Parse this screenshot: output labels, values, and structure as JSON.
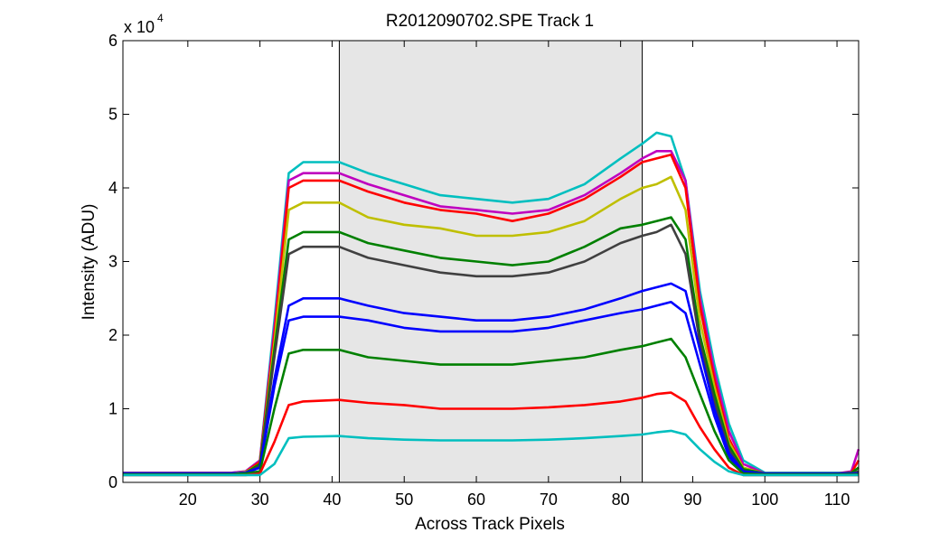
{
  "chart_data": {
    "type": "line",
    "title": "R2012090702.SPE   Track 1",
    "xlabel": "Across Track Pixels",
    "ylabel": "Intensity (ADU)",
    "y_multiplier_label": "x 10",
    "y_multiplier_exp": "4",
    "xlim": [
      11,
      113
    ],
    "ylim": [
      0,
      6
    ],
    "x_ticks": [
      20,
      30,
      40,
      50,
      60,
      70,
      80,
      90,
      100,
      110
    ],
    "y_ticks": [
      0,
      1,
      2,
      3,
      4,
      5,
      6
    ],
    "grid": false,
    "highlight_region": [
      41,
      83
    ],
    "x": [
      11,
      20,
      26,
      28,
      30,
      32,
      34,
      36,
      41,
      45,
      50,
      55,
      60,
      65,
      70,
      75,
      80,
      83,
      85,
      87,
      89,
      91,
      93,
      95,
      97,
      100,
      105,
      110,
      112,
      113
    ],
    "series": [
      {
        "color": "#00bfbf",
        "values": [
          0.13,
          0.13,
          0.13,
          0.15,
          0.3,
          2.2,
          4.2,
          4.35,
          4.35,
          4.2,
          4.05,
          3.9,
          3.85,
          3.8,
          3.85,
          4.05,
          4.4,
          4.6,
          4.75,
          4.7,
          4.1,
          2.6,
          1.6,
          0.8,
          0.3,
          0.13,
          0.13,
          0.13,
          0.13,
          0.15
        ]
      },
      {
        "color": "#bf00bf",
        "values": [
          0.13,
          0.13,
          0.13,
          0.15,
          0.3,
          2.1,
          4.1,
          4.2,
          4.2,
          4.05,
          3.9,
          3.75,
          3.7,
          3.65,
          3.7,
          3.9,
          4.2,
          4.4,
          4.5,
          4.5,
          4.1,
          2.5,
          1.5,
          0.7,
          0.25,
          0.12,
          0.12,
          0.12,
          0.15,
          0.45
        ]
      },
      {
        "color": "#ff0000",
        "values": [
          0.12,
          0.12,
          0.12,
          0.14,
          0.28,
          2.0,
          4.0,
          4.1,
          4.1,
          3.95,
          3.8,
          3.7,
          3.65,
          3.55,
          3.65,
          3.85,
          4.15,
          4.35,
          4.4,
          4.45,
          4.0,
          2.4,
          1.4,
          0.6,
          0.2,
          0.12,
          0.12,
          0.12,
          0.13,
          0.3
        ]
      },
      {
        "color": "#bfbf00",
        "values": [
          0.12,
          0.12,
          0.12,
          0.14,
          0.25,
          1.9,
          3.7,
          3.8,
          3.8,
          3.6,
          3.5,
          3.45,
          3.35,
          3.35,
          3.4,
          3.55,
          3.85,
          4.0,
          4.05,
          4.15,
          3.7,
          2.2,
          1.3,
          0.55,
          0.2,
          0.12,
          0.12,
          0.12,
          0.13,
          0.2
        ]
      },
      {
        "color": "#008000",
        "values": [
          0.12,
          0.12,
          0.12,
          0.13,
          0.25,
          1.8,
          3.3,
          3.4,
          3.4,
          3.25,
          3.15,
          3.05,
          3.0,
          2.95,
          3.0,
          3.2,
          3.45,
          3.5,
          3.55,
          3.6,
          3.3,
          2.0,
          1.2,
          0.5,
          0.18,
          0.12,
          0.12,
          0.12,
          0.13,
          0.2
        ]
      },
      {
        "color": "#404040",
        "values": [
          0.12,
          0.12,
          0.12,
          0.13,
          0.22,
          1.7,
          3.1,
          3.2,
          3.2,
          3.05,
          2.95,
          2.85,
          2.8,
          2.8,
          2.85,
          3.0,
          3.25,
          3.35,
          3.4,
          3.5,
          3.1,
          1.9,
          1.1,
          0.45,
          0.15,
          0.12,
          0.12,
          0.12,
          0.12,
          0.15
        ]
      },
      {
        "color": "#0000ff",
        "values": [
          0.12,
          0.12,
          0.12,
          0.13,
          0.2,
          1.4,
          2.4,
          2.5,
          2.5,
          2.4,
          2.3,
          2.25,
          2.2,
          2.2,
          2.25,
          2.35,
          2.5,
          2.6,
          2.65,
          2.7,
          2.6,
          1.8,
          1.0,
          0.4,
          0.15,
          0.12,
          0.12,
          0.12,
          0.12,
          0.12
        ]
      },
      {
        "color": "#0000ff",
        "values": [
          0.12,
          0.12,
          0.12,
          0.13,
          0.2,
          1.3,
          2.2,
          2.25,
          2.25,
          2.2,
          2.1,
          2.05,
          2.05,
          2.05,
          2.1,
          2.2,
          2.3,
          2.35,
          2.4,
          2.45,
          2.3,
          1.6,
          0.9,
          0.35,
          0.13,
          0.12,
          0.12,
          0.12,
          0.12,
          0.12
        ]
      },
      {
        "color": "#008000",
        "values": [
          0.11,
          0.11,
          0.11,
          0.12,
          0.15,
          1.0,
          1.75,
          1.8,
          1.8,
          1.7,
          1.65,
          1.6,
          1.6,
          1.6,
          1.65,
          1.7,
          1.8,
          1.85,
          1.9,
          1.95,
          1.7,
          1.2,
          0.7,
          0.3,
          0.12,
          0.11,
          0.11,
          0.11,
          0.11,
          0.11
        ]
      },
      {
        "color": "#ff0000",
        "values": [
          0.1,
          0.1,
          0.1,
          0.1,
          0.12,
          0.55,
          1.05,
          1.1,
          1.12,
          1.08,
          1.05,
          1.0,
          1.0,
          1.0,
          1.02,
          1.05,
          1.1,
          1.15,
          1.2,
          1.22,
          1.1,
          0.75,
          0.45,
          0.2,
          0.1,
          0.1,
          0.1,
          0.1,
          0.1,
          0.1
        ]
      },
      {
        "color": "#00bfbf",
        "values": [
          0.1,
          0.1,
          0.1,
          0.1,
          0.1,
          0.25,
          0.6,
          0.62,
          0.63,
          0.6,
          0.58,
          0.57,
          0.57,
          0.57,
          0.58,
          0.6,
          0.63,
          0.65,
          0.68,
          0.7,
          0.65,
          0.45,
          0.28,
          0.15,
          0.1,
          0.1,
          0.1,
          0.1,
          0.1,
          0.1
        ]
      }
    ]
  }
}
